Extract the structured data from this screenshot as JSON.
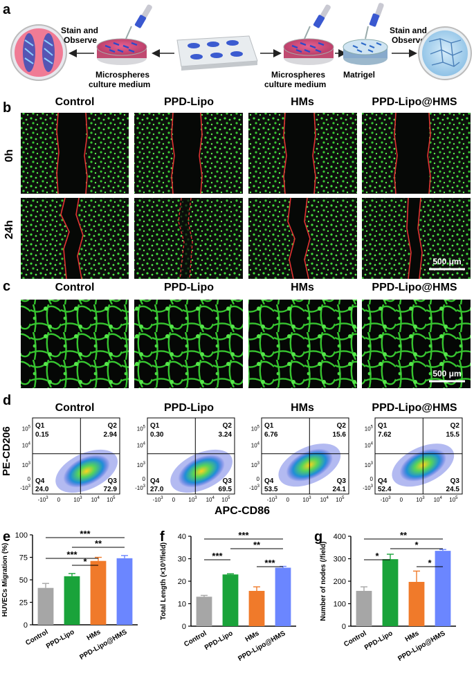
{
  "panel_labels": {
    "a": "a",
    "b": "b",
    "c": "c",
    "d": "d",
    "e": "e",
    "f": "f",
    "g": "g"
  },
  "groups": [
    "Control",
    "PPD-Lipo",
    "HMs",
    "PPD-Lipo@HMS"
  ],
  "panel_a": {
    "stain_left": [
      "Stain and",
      "Observe"
    ],
    "micro_left": [
      "Microspheres",
      "culture medium"
    ],
    "micro_right": [
      "Microspheres",
      "culture medium"
    ],
    "matrigel": "Matrigel",
    "stain_right": [
      "Stain and",
      "Observe"
    ]
  },
  "panel_b": {
    "rows": [
      "0h",
      "24h"
    ],
    "scale": "500 μm"
  },
  "panel_c": {
    "scale": "500 μm"
  },
  "panel_d": {
    "ylabel": "PE-CD206",
    "xlabel": "APC-CD86",
    "quadrant_names": [
      "Q1",
      "Q2",
      "Q3",
      "Q4"
    ],
    "y_ticks": [
      "10^5",
      "10^4",
      "10^3",
      "0",
      "-10^3"
    ],
    "x_ticks": [
      "-10^3",
      "0",
      "10^3",
      "10^4",
      "10^5"
    ],
    "plots": [
      {
        "group": "Control",
        "Q1": "0.15",
        "Q2": "2.94",
        "Q3": "72.9",
        "Q4": "24.0"
      },
      {
        "group": "PPD-Lipo",
        "Q1": "0.30",
        "Q2": "3.24",
        "Q3": "69.5",
        "Q4": "27.0"
      },
      {
        "group": "HMs",
        "Q1": "6.76",
        "Q2": "15.6",
        "Q3": "24.1",
        "Q4": "53.5"
      },
      {
        "group": "PPD-Lipo@HMS",
        "Q1": "7.62",
        "Q2": "15.5",
        "Q3": "24.5",
        "Q4": "52.4"
      }
    ]
  },
  "colors": {
    "Control": "#a6a6a6",
    "PPD-Lipo": "#1aa33a",
    "HMs": "#f07a2a",
    "PPD-Lipo@HMS": "#6b86ff"
  },
  "chart_data": [
    {
      "type": "bar",
      "categories": [
        "Control",
        "PPD-Lipo",
        "HMs",
        "PPD-Lipo@HMS"
      ],
      "values": [
        41,
        54,
        71,
        74
      ],
      "errors": [
        5,
        3,
        4,
        3
      ],
      "ylabel": "HUVECs Migration (%)",
      "ylim": [
        0,
        100
      ],
      "yticks": [
        0,
        25,
        50,
        75,
        100
      ],
      "significance": [
        {
          "from": 0,
          "to": 3,
          "label": "***"
        },
        {
          "from": 1,
          "to": 3,
          "label": "**"
        },
        {
          "from": 0,
          "to": 2,
          "label": "***"
        },
        {
          "from": 1,
          "to": 2,
          "label": "*"
        }
      ]
    },
    {
      "type": "bar",
      "categories": [
        "Control",
        "PPD-Lipo",
        "HMs",
        "PPD-Lipo@HMS"
      ],
      "values": [
        13.1,
        23,
        15.7,
        26
      ],
      "errors": [
        0.6,
        0.3,
        1.8,
        0.6
      ],
      "ylabel": "Total Length (×10³/field)",
      "ylim": [
        0,
        40
      ],
      "yticks": [
        0,
        10,
        20,
        30,
        40
      ],
      "significance": [
        {
          "from": 0,
          "to": 3,
          "label": "***"
        },
        {
          "from": 1,
          "to": 3,
          "label": "**"
        },
        {
          "from": 0,
          "to": 1,
          "label": "***"
        },
        {
          "from": 2,
          "to": 3,
          "label": "***"
        }
      ]
    },
    {
      "type": "bar",
      "categories": [
        "Control",
        "PPD-Lipo",
        "HMs",
        "PPD-Lipo@HMS"
      ],
      "values": [
        157,
        298,
        197,
        335
      ],
      "errors": [
        18,
        22,
        48,
        6
      ],
      "ylabel": "Number of nodes (/field)",
      "ylim": [
        0,
        400
      ],
      "yticks": [
        0,
        100,
        200,
        300,
        400
      ],
      "significance": [
        {
          "from": 0,
          "to": 3,
          "label": "**"
        },
        {
          "from": 1,
          "to": 3,
          "label": "*"
        },
        {
          "from": 0,
          "to": 1,
          "label": "*"
        },
        {
          "from": 2,
          "to": 3,
          "label": "*"
        }
      ]
    }
  ]
}
